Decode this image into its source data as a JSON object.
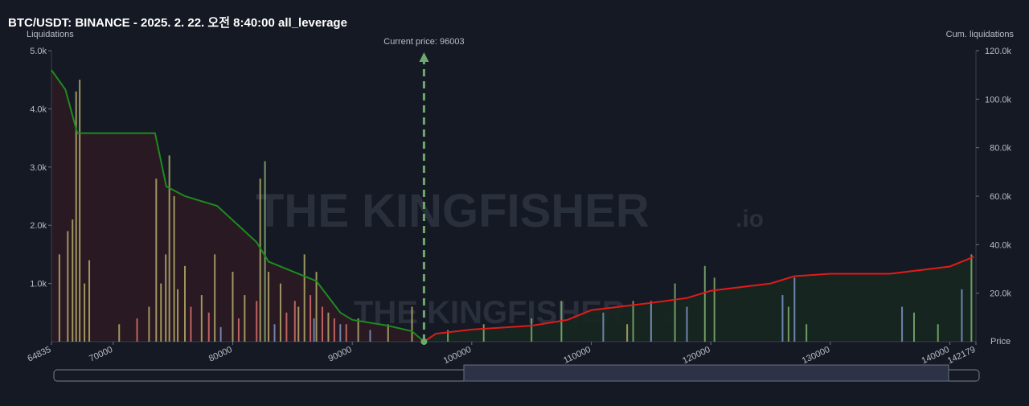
{
  "chart_data": {
    "type": "liquidation",
    "title": "BTC/USDT: BINANCE - 2025. 2. 22. 오전 8:40:00 all_leverage",
    "y_label": "Liquidations",
    "y2_label": "Cum. liquidations",
    "x_label": "Price",
    "watermark": [
      "THE KINGFISHER",
      ".io"
    ],
    "current_price": {
      "value": 96003,
      "label": "Current price: 96003"
    },
    "xlim": [
      64835,
      142179
    ],
    "xticks": [
      64835,
      70000,
      80000,
      90000,
      100000,
      110000,
      120000,
      130000,
      140000,
      142179
    ],
    "ylim": [
      0,
      5000
    ],
    "yticks": [
      {
        "value": 1000,
        "label": "1.0k"
      },
      {
        "value": 2000,
        "label": "2.0k"
      },
      {
        "value": 3000,
        "label": "3.0k"
      },
      {
        "value": 4000,
        "label": "4.0k"
      },
      {
        "value": 5000,
        "label": "5.0k"
      }
    ],
    "y2lim": [
      0,
      120000
    ],
    "y2ticks": [
      {
        "value": 20000,
        "label": "20.0k"
      },
      {
        "value": 40000,
        "label": "40.0k"
      },
      {
        "value": 60000,
        "label": "60.0k"
      },
      {
        "value": 80000,
        "label": "80.0k"
      },
      {
        "value": 100000,
        "label": "100.0k"
      },
      {
        "value": 120000,
        "label": "120.0k"
      }
    ],
    "series": [
      {
        "color": "#b5ad6a",
        "x": [
          65500,
          66200,
          66600,
          66900,
          67200,
          67600,
          68000,
          70500,
          73000,
          73600,
          74000,
          74400,
          74700,
          75100,
          75400,
          76000,
          77400,
          78500,
          80000,
          81000,
          82300,
          83000,
          84000,
          85500,
          86000,
          87000,
          88000,
          90500,
          93000,
          95000,
          113000
        ],
        "values": [
          1500,
          1900,
          2100,
          4300,
          4500,
          1000,
          1400,
          300,
          600,
          2800,
          1000,
          1500,
          3200,
          2500,
          900,
          1300,
          800,
          1500,
          1200,
          800,
          2800,
          1200,
          1000,
          600,
          1500,
          1200,
          500,
          400,
          300,
          600,
          300
        ]
      },
      {
        "color": "#d9706a",
        "x": [
          72000,
          76500,
          78000,
          80500,
          82000,
          84500,
          85200,
          86500,
          87500,
          88500,
          89500
        ],
        "values": [
          400,
          600,
          500,
          400,
          700,
          500,
          700,
          800,
          600,
          400,
          300
        ]
      },
      {
        "color": "#7f95c8",
        "x": [
          79000,
          83500,
          86800,
          89000,
          91500,
          111000,
          115000,
          118000,
          126000,
          127000,
          136000,
          141000
        ],
        "values": [
          250,
          300,
          400,
          300,
          200,
          500,
          700,
          600,
          800,
          1100,
          600,
          900
        ]
      },
      {
        "color": "#7fb070",
        "x": [
          82700,
          98000,
          101000,
          105000,
          107500,
          113500,
          117000,
          119500,
          120300,
          126500,
          128000,
          137000,
          139000,
          141800
        ],
        "values": [
          3100,
          200,
          300,
          400,
          700,
          700,
          1000,
          1300,
          1100,
          600,
          300,
          500,
          300,
          1500
        ]
      }
    ],
    "cumulative": [
      {
        "color": "#1f8a1f",
        "fill": "#2a1a22",
        "axis": "y2",
        "x": [
          64835,
          66000,
          67000,
          73500,
          74450,
          76000,
          78690,
          82000,
          83000,
          85000,
          87000,
          89000,
          90000,
          93000,
          95000,
          96003
        ],
        "values": [
          112000,
          104000,
          86000,
          86000,
          64000,
          60000,
          56000,
          41000,
          33000,
          29000,
          25000,
          12000,
          9000,
          6600,
          4300,
          0
        ]
      },
      {
        "color": "#e01b1b",
        "fill": "#16271f",
        "axis": "y2",
        "x": [
          96003,
          97000,
          100000,
          105000,
          108000,
          110000,
          115000,
          118000,
          120000,
          125000,
          127000,
          130000,
          135000,
          140000,
          142000
        ],
        "values": [
          0,
          3300,
          5000,
          6600,
          9000,
          13000,
          16000,
          18000,
          21000,
          24000,
          27000,
          28000,
          28000,
          31000,
          35000
        ]
      }
    ]
  }
}
